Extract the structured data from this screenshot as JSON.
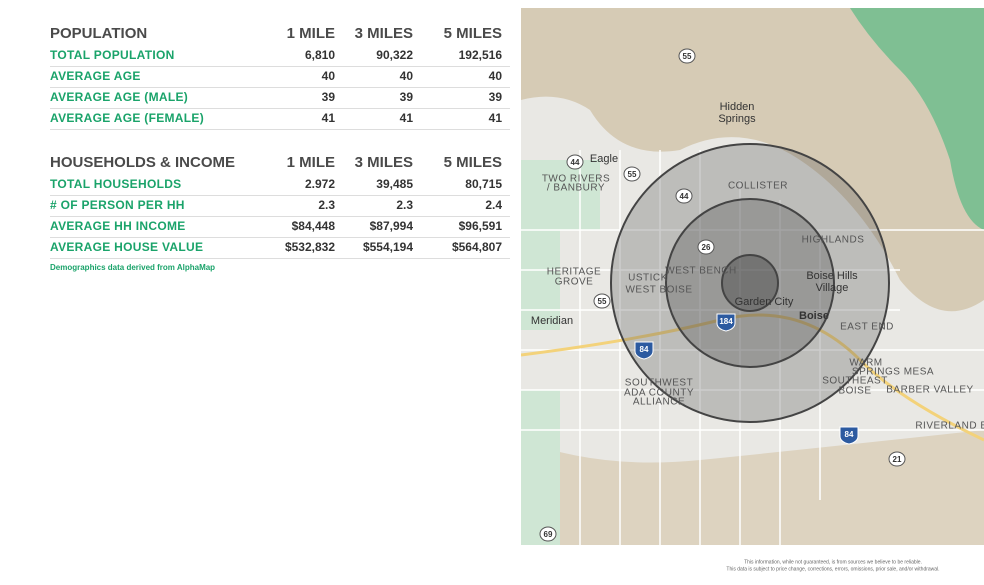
{
  "tables": [
    {
      "header": [
        "POPULATION",
        "1 MILE",
        "3 MILES",
        "5 MILES"
      ],
      "rows": [
        [
          "TOTAL POPULATION",
          "6,810",
          "90,322",
          "192,516"
        ],
        [
          "AVERAGE AGE",
          "40",
          "40",
          "40"
        ],
        [
          "AVERAGE AGE (MALE)",
          "39",
          "39",
          "39"
        ],
        [
          "AVERAGE AGE (FEMALE)",
          "41",
          "41",
          "41"
        ]
      ]
    },
    {
      "header": [
        "HOUSEHOLDS & INCOME",
        "1 MILE",
        "3 MILES",
        "5 MILES"
      ],
      "rows": [
        [
          "TOTAL HOUSEHOLDS",
          "2.972",
          "39,485",
          "80,715"
        ],
        [
          "# OF PERSON PER HH",
          "2.3",
          "2.3",
          "2.4"
        ],
        [
          "AVERAGE HH INCOME",
          "$84,448",
          "$87,994",
          "$96,591"
        ],
        [
          "AVERAGE HOUSE VALUE",
          "$532,832",
          "$554,194",
          "$564,807"
        ]
      ]
    }
  ],
  "footnote": "Demographics data derived from AlphaMap",
  "map": {
    "labels": [
      "Hidden",
      "Springs",
      "Eagle",
      "TWO RIVERS",
      "/ BANBURY",
      "COLLISTER",
      "HIGHLANDS",
      "HERITAGE",
      "GROVE",
      "USTICK",
      "WEST BOISE",
      "WEST BENCH",
      "Boise Hills",
      "Village",
      "Garden City",
      "Boise",
      "EAST END",
      "Meridian",
      "WARM",
      "SPRINGS MESA",
      "SOUTHWEST",
      "ADA COUNTY",
      "ALLIANCE",
      "SOUTHEAST",
      "BOISE",
      "BARBER VALLEY",
      "RIVERLAND EA"
    ],
    "shields": [
      "55",
      "44",
      "55",
      "44",
      "26",
      "55",
      "184",
      "84",
      "84",
      "21",
      "69"
    ]
  },
  "disclaimer": [
    "This information, while not guaranteed, is from sources we believe to be reliable.",
    "This data is subject to price change, corrections, errors, omissions, prior sale, and/or withdrawal."
  ]
}
